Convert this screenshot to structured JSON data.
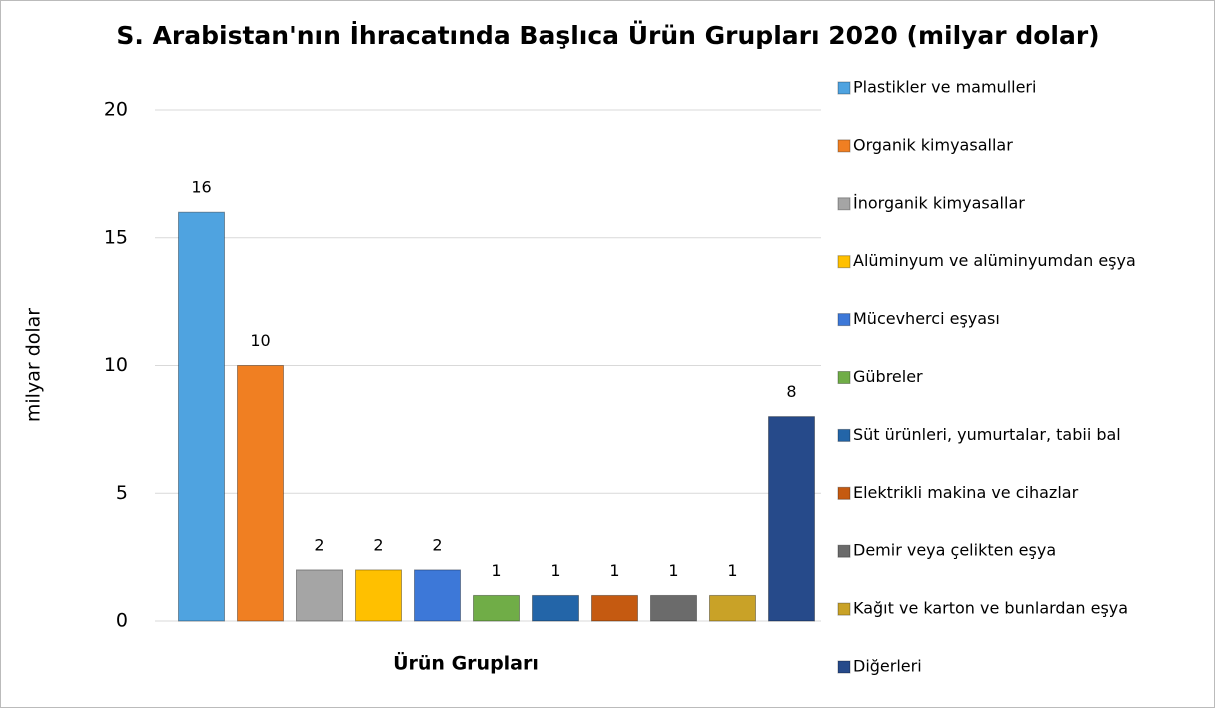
{
  "chart_data": {
    "type": "bar",
    "title": "S. Arabistan'nın İhracatında Başlıca Ürün Grupları 2020 (milyar dolar)",
    "x_label": "Ürün Grupları",
    "y_label": "milyar dolar",
    "ylim": [
      0,
      20
    ],
    "yticks": [
      0,
      5,
      10,
      15,
      20
    ],
    "grid": true,
    "legend": "right",
    "series": [
      {
        "name": "Plastikler ve mamulleri",
        "color": "#4fa3e0",
        "values": [
          16
        ]
      },
      {
        "name": "Organik kimyasallar",
        "color": "#f07f22",
        "values": [
          10
        ]
      },
      {
        "name": "İnorganik kimyasallar",
        "color": "#a5a5a5",
        "values": [
          2
        ]
      },
      {
        "name": "Alüminyum ve alüminyumdan eşya",
        "color": "#ffc000",
        "values": [
          2
        ]
      },
      {
        "name": "Mücevherci eşyası",
        "color": "#3d78d8",
        "values": [
          2
        ]
      },
      {
        "name": "Gübreler",
        "color": "#70ad47",
        "values": [
          1
        ]
      },
      {
        "name": "Süt ürünleri, yumurtalar, tabii bal",
        "color": "#2365a8",
        "values": [
          1
        ]
      },
      {
        "name": "Elektrikli makina ve cihazlar",
        "color": "#c55a11",
        "values": [
          1
        ]
      },
      {
        "name": "Demir veya çelikten eşya",
        "color": "#6b6b6b",
        "values": [
          1
        ]
      },
      {
        "name": "Kağıt ve karton ve bunlardan eşya",
        "color": "#c9a227",
        "values": [
          1
        ]
      },
      {
        "name": "Diğerleri",
        "color": "#264a8a",
        "values": [
          8
        ]
      }
    ]
  }
}
